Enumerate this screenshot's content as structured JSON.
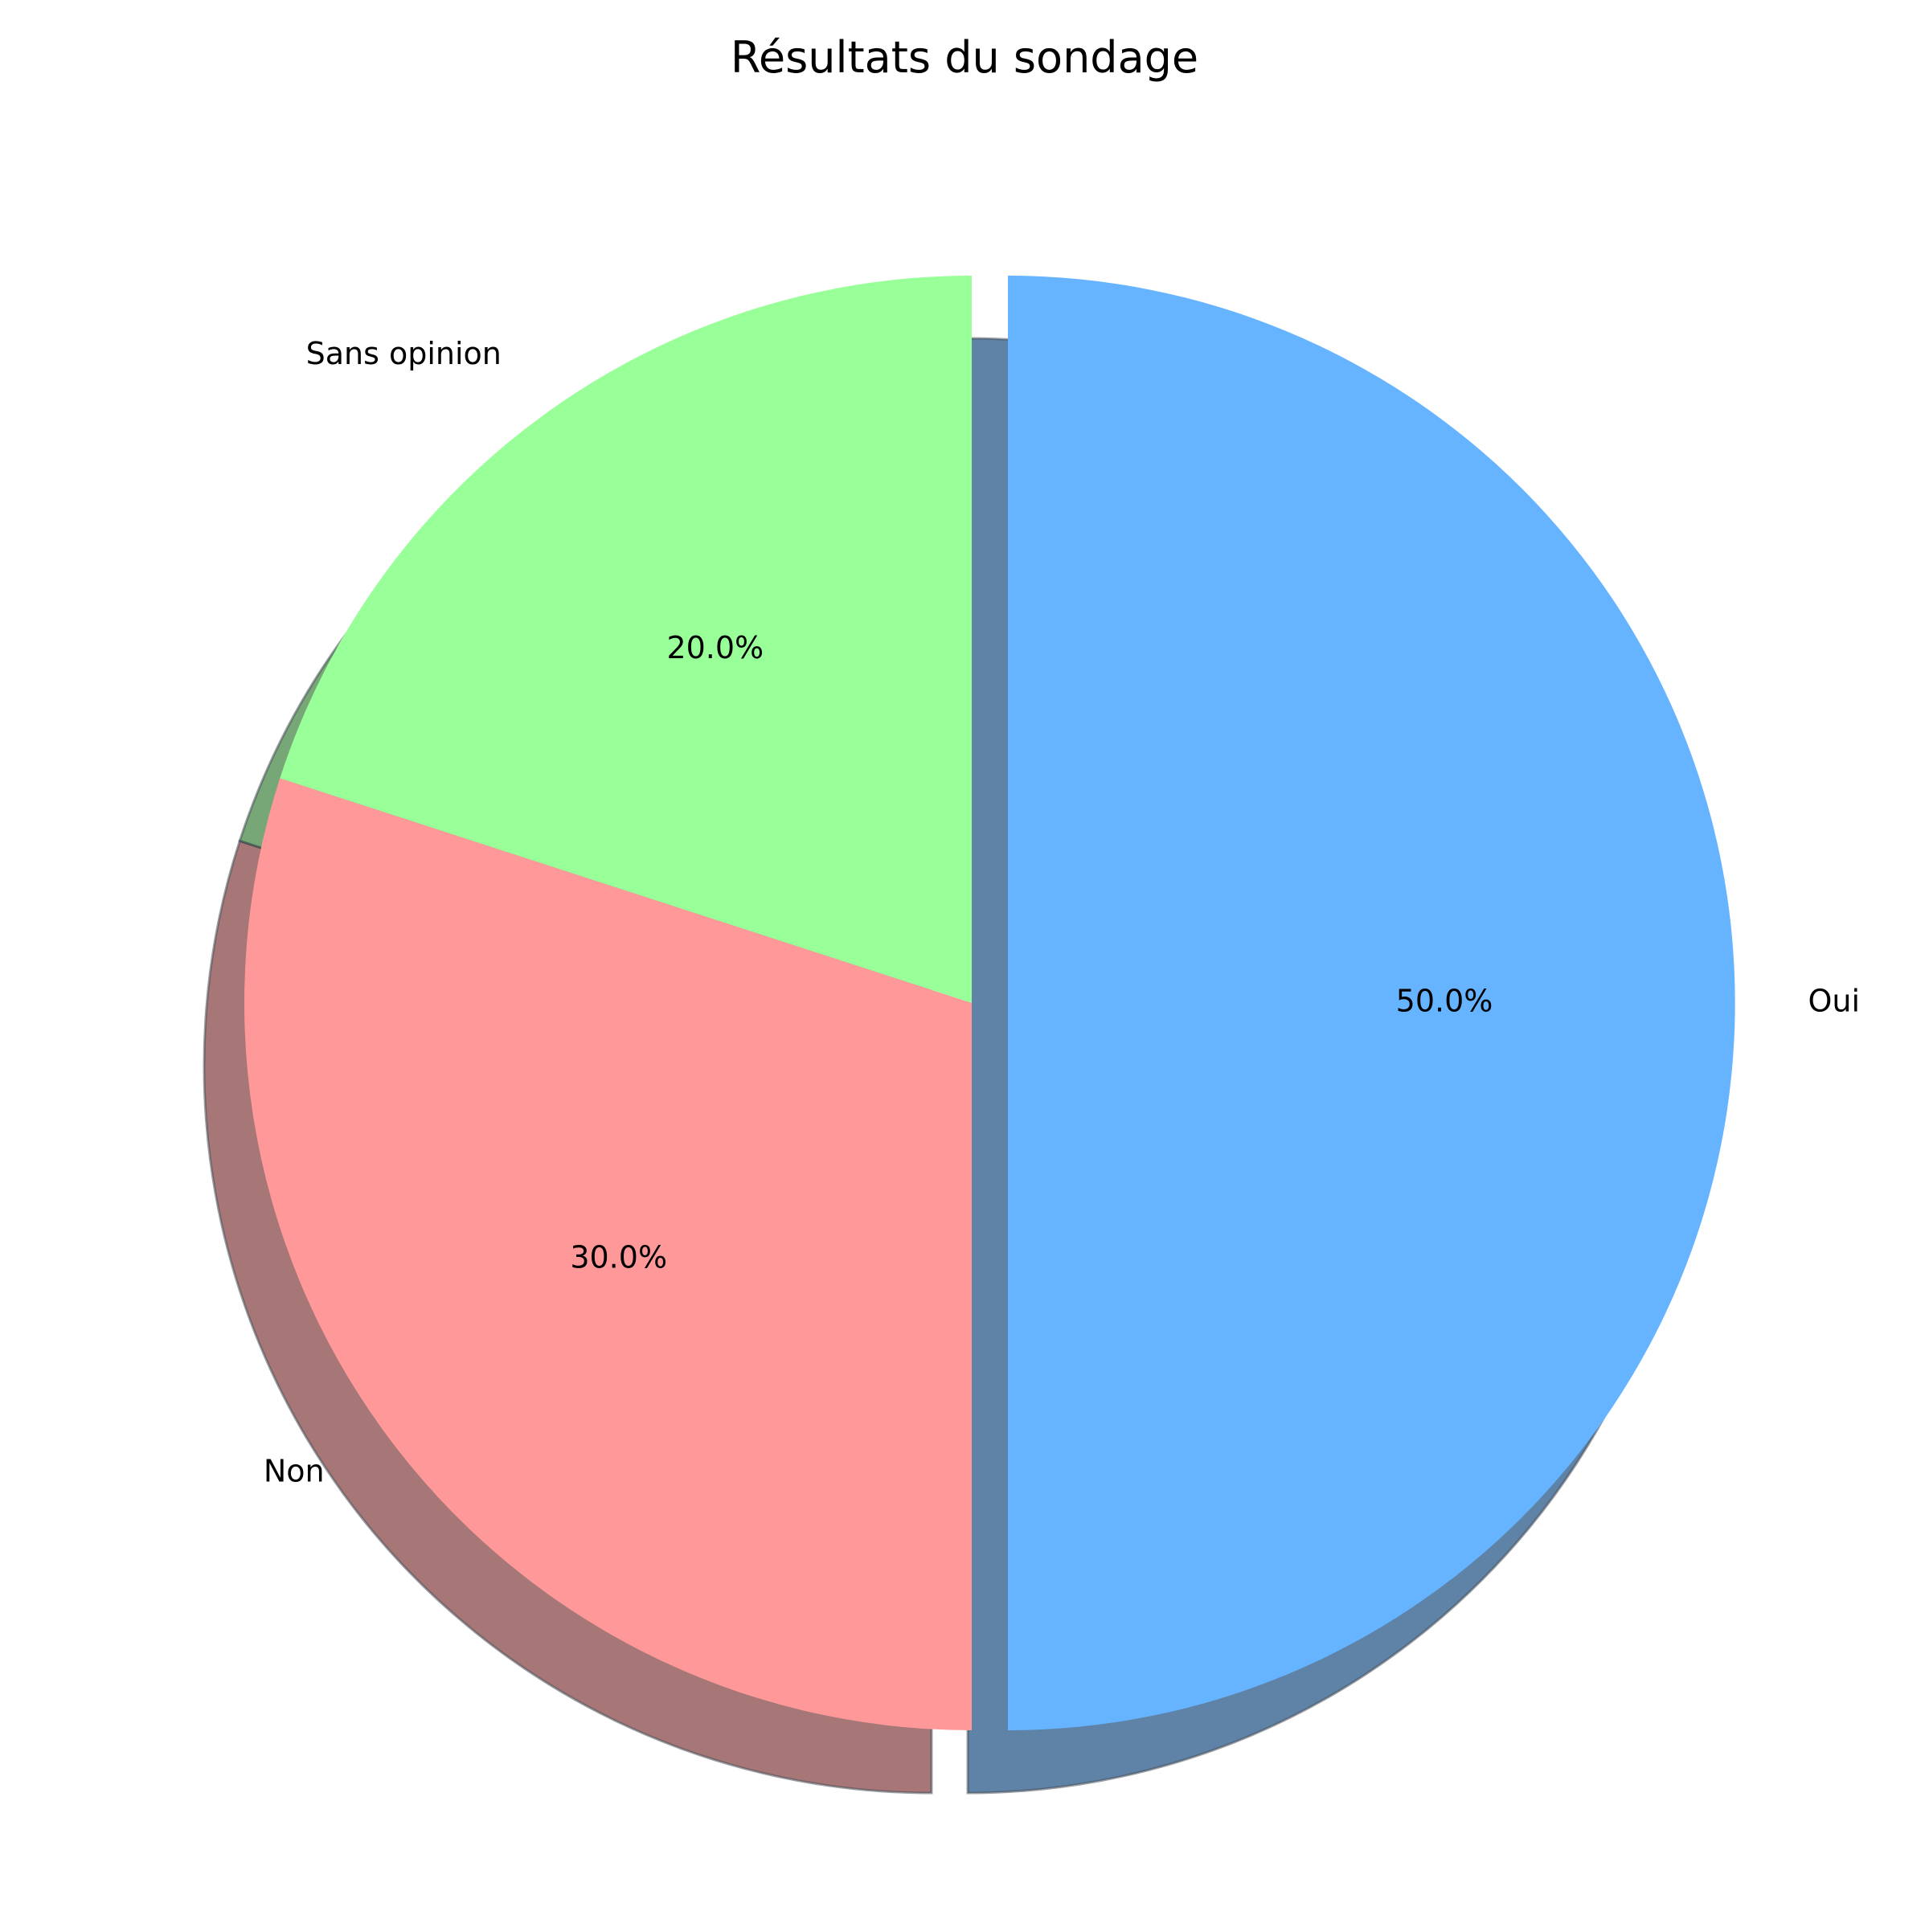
{
  "chart_data": {
    "type": "pie",
    "title": "Résultats du sondage",
    "start_angle_deg": 90,
    "direction": "clockwise",
    "shadow": true,
    "slices": [
      {
        "label": "Oui",
        "value": 50,
        "pct_label": "50.0%",
        "color": "#66b3ff",
        "exploded": true
      },
      {
        "label": "Non",
        "value": 30,
        "pct_label": "30.0%",
        "color": "#ff9999",
        "exploded": false
      },
      {
        "label": "Sans opinion",
        "value": 20,
        "pct_label": "20.0%",
        "color": "#99ff99",
        "exploded": false
      }
    ]
  }
}
